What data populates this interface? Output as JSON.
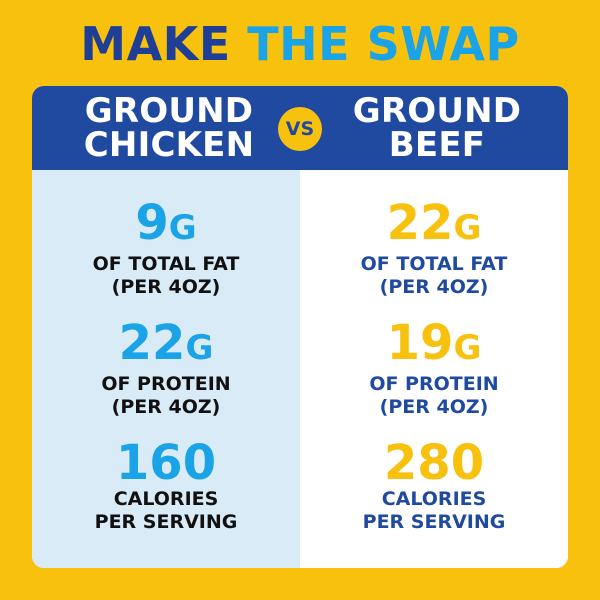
{
  "title": {
    "part1": "MAKE",
    "part2": "THE SWAP"
  },
  "header": {
    "left": [
      "GROUND",
      "CHICKEN"
    ],
    "vs": "VS",
    "right": [
      "GROUND",
      "BEEF"
    ]
  },
  "chicken": {
    "fat": {
      "value": "9",
      "unit": "G",
      "label1": "OF TOTAL FAT",
      "label2": "(PER 4OZ)"
    },
    "protein": {
      "value": "22",
      "unit": "G",
      "label1": "OF PROTEIN",
      "label2": "(PER 4OZ)"
    },
    "calories": {
      "value": "160",
      "label1": "CALORIES",
      "label2": "PER SERVING"
    }
  },
  "beef": {
    "fat": {
      "value": "22",
      "unit": "G",
      "label1": "OF TOTAL FAT",
      "label2": "(PER 4OZ)"
    },
    "protein": {
      "value": "19",
      "unit": "G",
      "label1": "OF PROTEIN",
      "label2": "(PER 4OZ)"
    },
    "calories": {
      "value": "280",
      "label1": "CALORIES",
      "label2": "PER SERVING"
    }
  },
  "colors": {
    "background": "#f7c10e",
    "navy": "#1f4aa0",
    "sky": "#1aa3e6",
    "chicken_panel": "#d9ebf7"
  }
}
